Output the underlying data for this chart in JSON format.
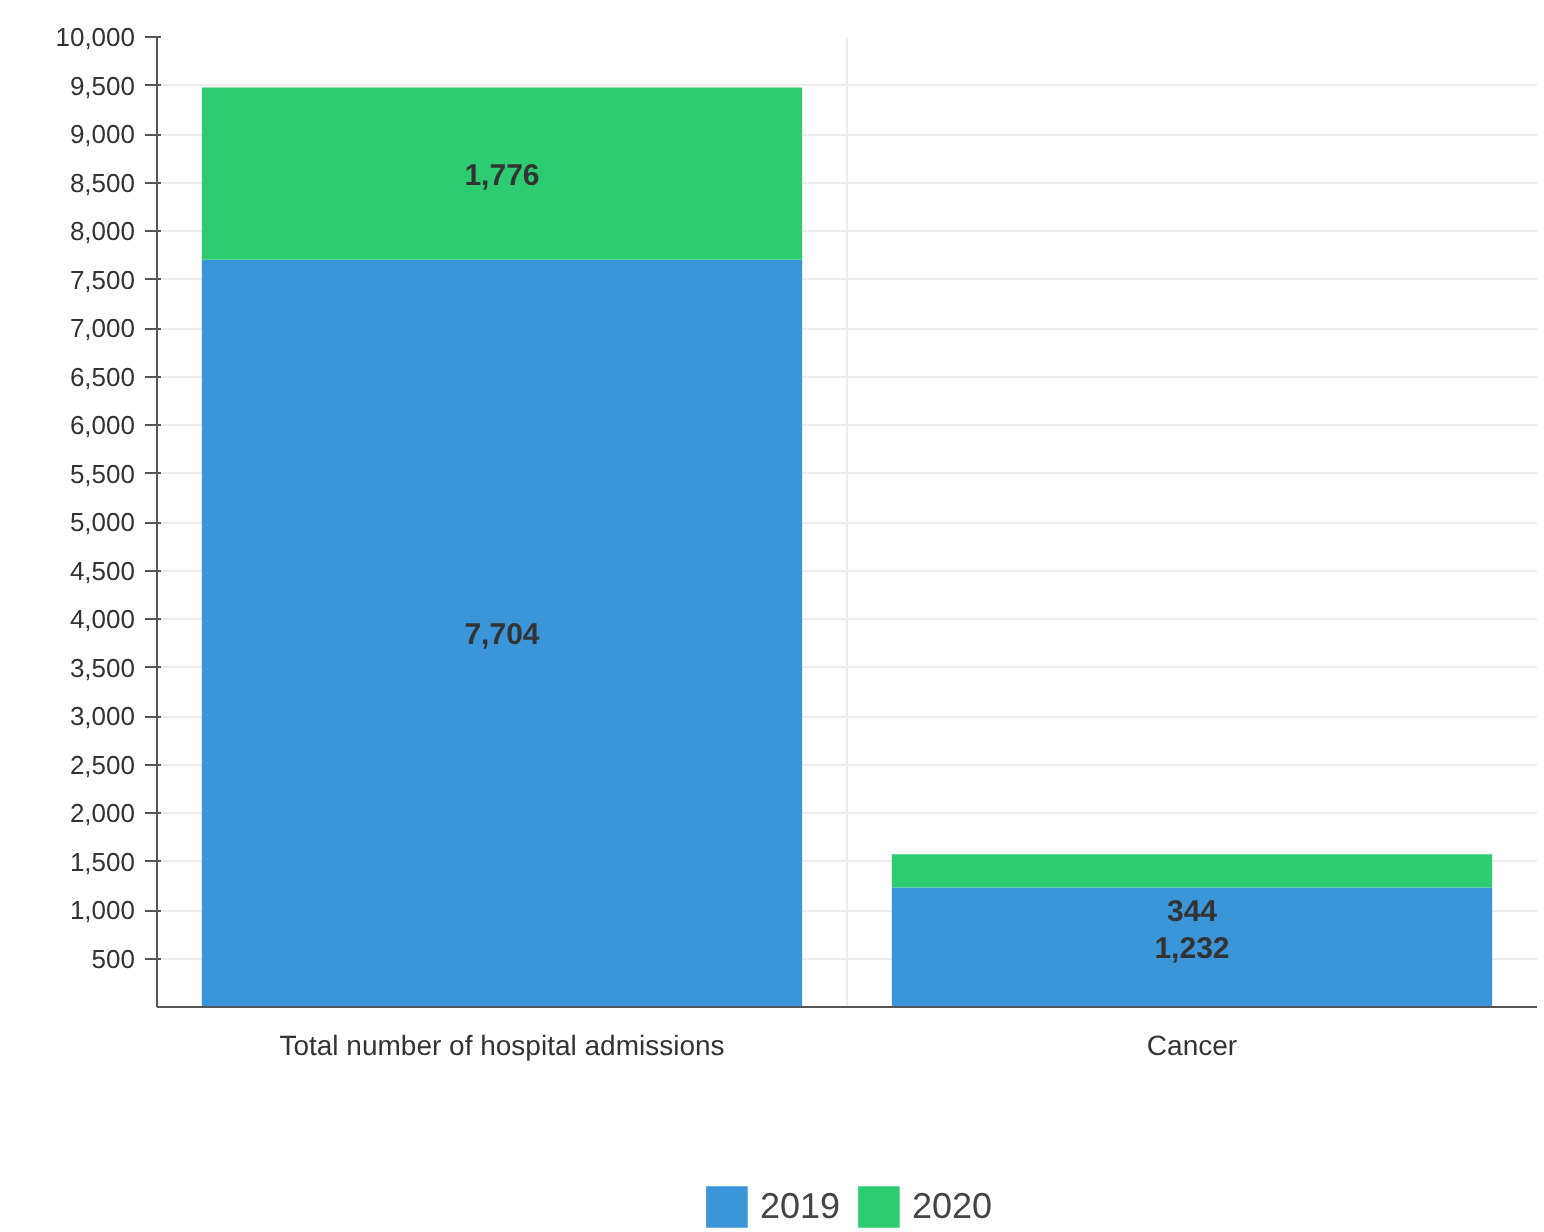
{
  "chart_data": {
    "type": "bar",
    "stacked": true,
    "categories": [
      "Total number of hospital admissions",
      "Cancer"
    ],
    "series": [
      {
        "name": "2019",
        "color": "#3a96d8",
        "values": [
          7704,
          1232
        ],
        "value_labels": [
          "7,704",
          "1,232"
        ]
      },
      {
        "name": "2020",
        "color": "#2ecc71",
        "values": [
          1776,
          344
        ],
        "value_labels": [
          "1,776",
          "344"
        ]
      }
    ],
    "ylim": [
      0,
      10000
    ],
    "yticks": [
      {
        "value": 500,
        "label": "500"
      },
      {
        "value": 1000,
        "label": "1,000"
      },
      {
        "value": 1500,
        "label": "1,500"
      },
      {
        "value": 2000,
        "label": "2,000"
      },
      {
        "value": 2500,
        "label": "2,500"
      },
      {
        "value": 3000,
        "label": "3,000"
      },
      {
        "value": 3500,
        "label": "3,500"
      },
      {
        "value": 4000,
        "label": "4,000"
      },
      {
        "value": 4500,
        "label": "4,500"
      },
      {
        "value": 5000,
        "label": "5,000"
      },
      {
        "value": 5500,
        "label": "5,500"
      },
      {
        "value": 6000,
        "label": "6,000"
      },
      {
        "value": 6500,
        "label": "6,500"
      },
      {
        "value": 7000,
        "label": "7,000"
      },
      {
        "value": 7500,
        "label": "7,500"
      },
      {
        "value": 8000,
        "label": "8,000"
      },
      {
        "value": 8500,
        "label": "8,500"
      },
      {
        "value": 9000,
        "label": "9,000"
      },
      {
        "value": 9500,
        "label": "9,500"
      },
      {
        "value": 10000,
        "label": "10,000"
      }
    ],
    "grid": true,
    "legend": "bottom"
  }
}
